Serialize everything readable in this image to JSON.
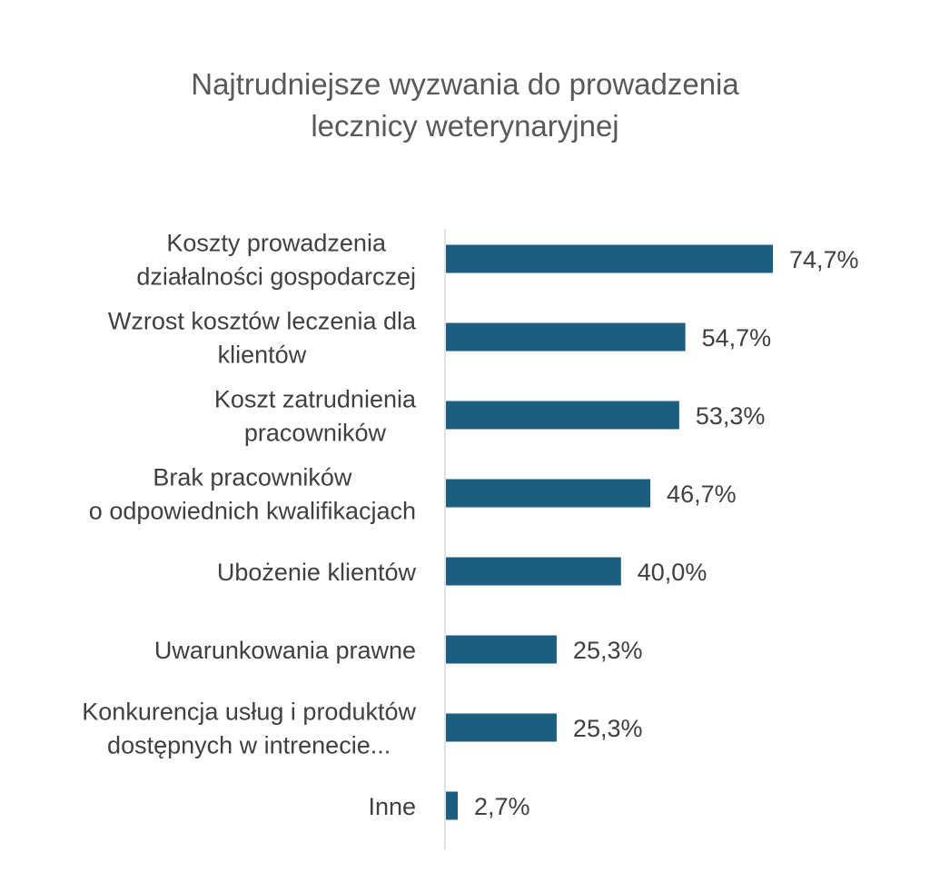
{
  "chart_data": {
    "type": "bar",
    "orientation": "horizontal",
    "title": "Najtrudniejsze wyzwania do prowadzenia lecznicy weterynaryjnej",
    "title_lines": [
      "Najtrudniejsze wyzwania do prowadzenia",
      "lecznicy weterynaryjnej"
    ],
    "categories": [
      [
        "Koszty prowadzenia",
        "działalności gospodarczej"
      ],
      [
        "Wzrost kosztów leczenia dla",
        "klientów"
      ],
      [
        "Koszt zatrudnienia",
        "pracowników"
      ],
      [
        "Brak pracowników",
        "o odpowiednich kwalifikacjach"
      ],
      [
        "Ubożenie klientów"
      ],
      [
        "Uwarunkowania prawne"
      ],
      [
        "Konkurencja usług i produktów",
        "dostępnych w intrenecie..."
      ],
      [
        "Inne"
      ]
    ],
    "values": [
      74.7,
      54.7,
      53.3,
      46.7,
      40.0,
      25.3,
      25.3,
      2.7
    ],
    "data_labels": [
      "74,7%",
      "54,7%",
      "53,3%",
      "46,7%",
      "40,0%",
      "25,3%",
      "25,3%",
      "2,7%"
    ],
    "unit": "%",
    "xlim": [
      0,
      100
    ],
    "xlabel": "",
    "ylabel": "",
    "grid": false,
    "legend": "none",
    "colors": {
      "bar": "#1b5e80",
      "axis": "#d9d9d9",
      "title": "#595959",
      "text": "#404040"
    }
  }
}
